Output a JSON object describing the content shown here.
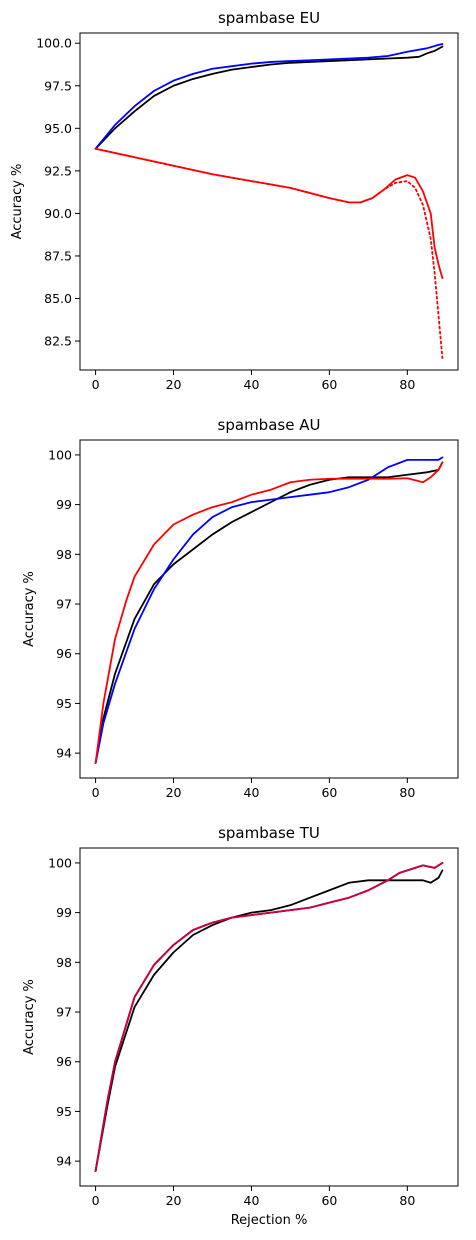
{
  "chart_data": [
    {
      "type": "line",
      "title": "spambase EU",
      "xlabel": "",
      "ylabel": "Accuracy %",
      "xlim": [
        -4,
        93
      ],
      "ylim": [
        80.8,
        100.6
      ],
      "xticks": [
        0,
        20,
        40,
        60,
        80
      ],
      "yticks": [
        82.5,
        85.0,
        87.5,
        90.0,
        92.5,
        95.0,
        97.5,
        100.0
      ],
      "ytick_labels": [
        "82.5",
        "85.0",
        "87.5",
        "90.0",
        "92.5",
        "95.0",
        "97.5",
        "100.0"
      ],
      "grid": false,
      "series": [
        {
          "color": "#000000",
          "style": "solid",
          "x": [
            0,
            5,
            10,
            15,
            20,
            25,
            30,
            35,
            40,
            45,
            50,
            55,
            60,
            65,
            70,
            75,
            80,
            83,
            85,
            87,
            89
          ],
          "y": [
            93.8,
            95.0,
            96.0,
            96.9,
            97.5,
            97.9,
            98.2,
            98.45,
            98.6,
            98.75,
            98.85,
            98.9,
            98.95,
            99.0,
            99.05,
            99.1,
            99.15,
            99.2,
            99.4,
            99.55,
            99.8
          ]
        },
        {
          "color": "#0000ff",
          "style": "solid",
          "x": [
            0,
            5,
            10,
            15,
            20,
            25,
            30,
            35,
            40,
            45,
            50,
            55,
            60,
            65,
            70,
            75,
            80,
            85,
            88,
            89
          ],
          "y": [
            93.8,
            95.2,
            96.3,
            97.2,
            97.8,
            98.2,
            98.5,
            98.65,
            98.8,
            98.9,
            98.95,
            99.0,
            99.05,
            99.1,
            99.15,
            99.25,
            99.5,
            99.7,
            99.9,
            99.95
          ]
        },
        {
          "color": "#ff0000",
          "style": "solid",
          "x": [
            0,
            10,
            20,
            30,
            40,
            50,
            55,
            60,
            65,
            68,
            71,
            74,
            77,
            80,
            82,
            84,
            86,
            87,
            88,
            89
          ],
          "y": [
            93.8,
            93.3,
            92.8,
            92.3,
            91.9,
            91.5,
            91.2,
            90.9,
            90.65,
            90.65,
            90.9,
            91.4,
            92.0,
            92.25,
            92.1,
            91.3,
            90.0,
            88.0,
            87.0,
            86.2
          ]
        },
        {
          "color": "#ff0000",
          "style": "dotted",
          "x": [
            0,
            10,
            20,
            30,
            40,
            50,
            55,
            60,
            65,
            68,
            71,
            74,
            77,
            80,
            82,
            84,
            86,
            87,
            88,
            89
          ],
          "y": [
            93.8,
            93.3,
            92.8,
            92.3,
            91.9,
            91.5,
            91.2,
            90.9,
            90.65,
            90.65,
            90.9,
            91.4,
            91.8,
            91.9,
            91.5,
            90.5,
            88.5,
            86.5,
            84.0,
            81.5
          ]
        }
      ]
    },
    {
      "type": "line",
      "title": "spambase AU",
      "xlabel": "",
      "ylabel": "Accuracy %",
      "xlim": [
        -4,
        93
      ],
      "ylim": [
        93.5,
        100.3
      ],
      "xticks": [
        0,
        20,
        40,
        60,
        80
      ],
      "yticks": [
        94,
        95,
        96,
        97,
        98,
        99,
        100
      ],
      "ytick_labels": [
        "94",
        "95",
        "96",
        "97",
        "98",
        "99",
        "100"
      ],
      "grid": false,
      "series": [
        {
          "color": "#000000",
          "style": "solid",
          "x": [
            0,
            2,
            5,
            10,
            15,
            20,
            25,
            30,
            35,
            40,
            45,
            50,
            55,
            60,
            65,
            70,
            75,
            80,
            85,
            88,
            89
          ],
          "y": [
            93.8,
            94.7,
            95.6,
            96.7,
            97.4,
            97.8,
            98.1,
            98.4,
            98.65,
            98.85,
            99.05,
            99.25,
            99.4,
            99.5,
            99.55,
            99.55,
            99.55,
            99.6,
            99.65,
            99.7,
            99.85
          ]
        },
        {
          "color": "#0000ff",
          "style": "solid",
          "x": [
            0,
            2,
            5,
            10,
            15,
            20,
            25,
            30,
            35,
            40,
            45,
            50,
            55,
            60,
            65,
            70,
            75,
            80,
            85,
            88,
            89
          ],
          "y": [
            93.8,
            94.6,
            95.4,
            96.5,
            97.3,
            97.9,
            98.4,
            98.75,
            98.95,
            99.05,
            99.1,
            99.15,
            99.2,
            99.25,
            99.35,
            99.5,
            99.75,
            99.9,
            99.9,
            99.9,
            99.95
          ]
        },
        {
          "color": "#ff0000",
          "style": "solid",
          "x": [
            0,
            2,
            5,
            8,
            10,
            15,
            20,
            25,
            30,
            35,
            40,
            45,
            50,
            55,
            60,
            65,
            70,
            75,
            80,
            84,
            86,
            88,
            89
          ],
          "y": [
            93.8,
            95.0,
            96.3,
            97.1,
            97.55,
            98.2,
            98.6,
            98.8,
            98.95,
            99.05,
            99.2,
            99.3,
            99.45,
            99.5,
            99.52,
            99.52,
            99.52,
            99.52,
            99.53,
            99.45,
            99.55,
            99.7,
            99.85
          ]
        }
      ]
    },
    {
      "type": "line",
      "title": "spambase TU",
      "xlabel": "Rejection %",
      "ylabel": "Accuracy %",
      "xlim": [
        -4,
        93
      ],
      "ylim": [
        93.5,
        100.3
      ],
      "xticks": [
        0,
        20,
        40,
        60,
        80
      ],
      "yticks": [
        94,
        95,
        96,
        97,
        98,
        99,
        100
      ],
      "ytick_labels": [
        "94",
        "95",
        "96",
        "97",
        "98",
        "99",
        "100"
      ],
      "grid": false,
      "series": [
        {
          "color": "#000000",
          "style": "solid",
          "x": [
            0,
            3,
            5,
            10,
            15,
            20,
            25,
            30,
            35,
            40,
            45,
            50,
            55,
            60,
            65,
            70,
            75,
            80,
            84,
            86,
            88,
            89
          ],
          "y": [
            93.8,
            95.1,
            95.9,
            97.1,
            97.75,
            98.2,
            98.55,
            98.75,
            98.9,
            99.0,
            99.05,
            99.15,
            99.3,
            99.45,
            99.6,
            99.65,
            99.65,
            99.65,
            99.65,
            99.6,
            99.7,
            99.85
          ]
        },
        {
          "color": "#0000ff",
          "style": "solid",
          "x": [
            0,
            3,
            5,
            10,
            15,
            20,
            25,
            30,
            35,
            40,
            45,
            50,
            55,
            60,
            65,
            70,
            75,
            78,
            80,
            84,
            87,
            89
          ],
          "y": [
            93.8,
            95.2,
            96.0,
            97.3,
            97.95,
            98.35,
            98.65,
            98.8,
            98.9,
            98.95,
            99.0,
            99.05,
            99.1,
            99.2,
            99.3,
            99.45,
            99.65,
            99.8,
            99.85,
            99.95,
            99.9,
            100.0
          ]
        },
        {
          "color": "#ff0000",
          "style": "dotted",
          "x": [
            0,
            3,
            5,
            10,
            15,
            20,
            25,
            30,
            35,
            40,
            45,
            50,
            55,
            60,
            65,
            70,
            75,
            78,
            80,
            84,
            87,
            89
          ],
          "y": [
            93.8,
            95.2,
            96.0,
            97.3,
            97.95,
            98.35,
            98.65,
            98.8,
            98.9,
            98.95,
            99.0,
            99.05,
            99.1,
            99.2,
            99.3,
            99.45,
            99.65,
            99.8,
            99.85,
            99.95,
            99.9,
            100.0
          ]
        },
        {
          "color": "#cc0033",
          "style": "solid",
          "x": [
            0,
            3,
            5,
            10,
            15,
            20,
            25,
            30,
            35,
            40,
            45,
            50,
            55,
            60,
            65,
            70,
            75,
            78,
            80,
            84,
            87,
            89
          ],
          "y": [
            93.8,
            95.2,
            96.0,
            97.3,
            97.95,
            98.35,
            98.65,
            98.8,
            98.9,
            98.95,
            99.0,
            99.05,
            99.1,
            99.2,
            99.3,
            99.45,
            99.65,
            99.8,
            99.85,
            99.95,
            99.9,
            100.0
          ]
        }
      ]
    }
  ]
}
